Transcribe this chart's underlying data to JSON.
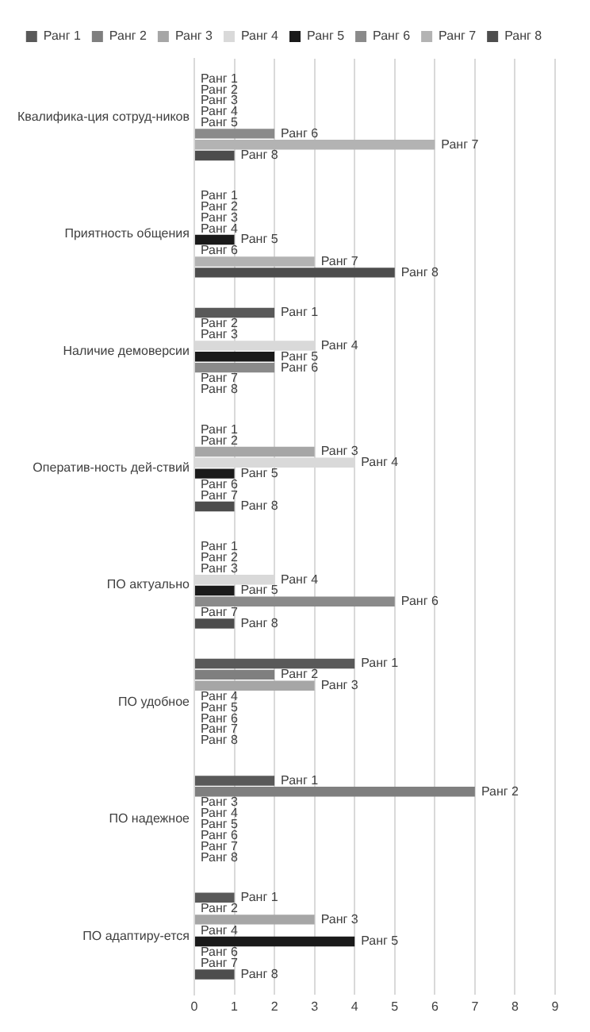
{
  "chart_data": {
    "type": "bar",
    "orientation": "horizontal",
    "categories": [
      "Квалифика-ция сотруд-ников",
      "Приятность общения",
      "Наличие демоверсии",
      "Оператив-ность дей-ствий",
      "ПО актуально",
      "ПО удобное",
      "ПО надежное",
      "ПО адаптиру-ется"
    ],
    "series": [
      {
        "name": "Ранг 1",
        "color": "#595959",
        "values": [
          0,
          0,
          2,
          0,
          0,
          4,
          2,
          1
        ]
      },
      {
        "name": "Ранг 2",
        "color": "#7f7f7f",
        "values": [
          0,
          0,
          0,
          0,
          0,
          2,
          7,
          0
        ]
      },
      {
        "name": "Ранг 3",
        "color": "#a6a6a6",
        "values": [
          0,
          0,
          0,
          3,
          0,
          3,
          0,
          3
        ]
      },
      {
        "name": "Ранг 4",
        "color": "#d9d9d9",
        "values": [
          0,
          0,
          3,
          4,
          2,
          0,
          0,
          0
        ]
      },
      {
        "name": "Ранг 5",
        "color": "#1a1a1a",
        "values": [
          0,
          1,
          2,
          1,
          1,
          0,
          0,
          4
        ]
      },
      {
        "name": "Ранг 6",
        "color": "#8a8a8a",
        "values": [
          2,
          0,
          2,
          0,
          5,
          0,
          0,
          0
        ]
      },
      {
        "name": "Ранг 7",
        "color": "#b3b3b3",
        "values": [
          6,
          3,
          0,
          0,
          0,
          0,
          0,
          0
        ]
      },
      {
        "name": "Ранг 8",
        "color": "#4d4d4d",
        "values": [
          1,
          5,
          0,
          1,
          1,
          0,
          0,
          1
        ]
      }
    ],
    "xlim": [
      0,
      9
    ],
    "xticks": [
      0,
      1,
      2,
      3,
      4,
      5,
      6,
      7,
      8,
      9
    ],
    "grid": "x",
    "legend": "top"
  }
}
